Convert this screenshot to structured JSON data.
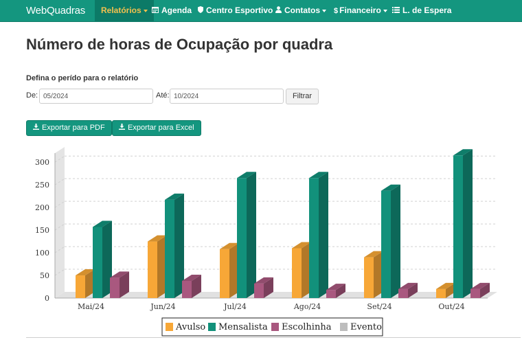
{
  "navbar": {
    "brand": "WebQuadras",
    "items": [
      {
        "label": "Relatórios",
        "icon": "",
        "active": true,
        "dropdown": true
      },
      {
        "label": "Agenda",
        "icon": "calendar-icon",
        "active": false,
        "dropdown": false
      },
      {
        "label": "Centro Esportivo",
        "icon": "shield-icon",
        "active": false,
        "dropdown": false
      },
      {
        "label": "Contatos",
        "icon": "user-icon",
        "active": false,
        "dropdown": true
      },
      {
        "label": "Financeiro",
        "icon": "dollar-icon",
        "active": false,
        "dropdown": true
      },
      {
        "label": "L. de Espera",
        "icon": "list-icon",
        "active": false,
        "dropdown": false
      }
    ]
  },
  "page": {
    "title": "Número de horas de Ocupação por quadra",
    "period_label": "Defina o perído para o relatório",
    "from_label": "De:",
    "from_value": "05/2024",
    "to_label": "Até:",
    "to_value": "10/2024",
    "filter_button": "Filtrar",
    "export_pdf": "Exportar para PDF",
    "export_excel": "Exportar para Excel",
    "download_icon": "download-icon"
  },
  "colors": {
    "navbar": "#14967f",
    "active_text": "#f2c14e",
    "avulso": "#f7a737",
    "mensalista": "#12917b",
    "escolhinha": "#a9587f",
    "evento": "#bdbdbd"
  },
  "chart_data": {
    "type": "bar",
    "categories": [
      "Mai/24",
      "Jun/24",
      "Jul/24",
      "Ago/24",
      "Set/24",
      "Out/24"
    ],
    "series": [
      {
        "name": "Avulso",
        "values": [
          50,
          125,
          108,
          110,
          90,
          20
        ]
      },
      {
        "name": "Mensalista",
        "values": [
          157,
          217,
          265,
          265,
          237,
          315
        ]
      },
      {
        "name": "Escolhinha",
        "values": [
          45,
          38,
          32,
          18,
          20,
          20
        ]
      },
      {
        "name": "Evento",
        "values": [
          0,
          0,
          0,
          0,
          0,
          0
        ]
      }
    ],
    "yticks": [
      "0",
      "50",
      "100",
      "150",
      "200",
      "250",
      "300"
    ],
    "ylim": [
      0,
      320
    ],
    "grid": true,
    "legend_position": "bottom",
    "style": "3d"
  }
}
